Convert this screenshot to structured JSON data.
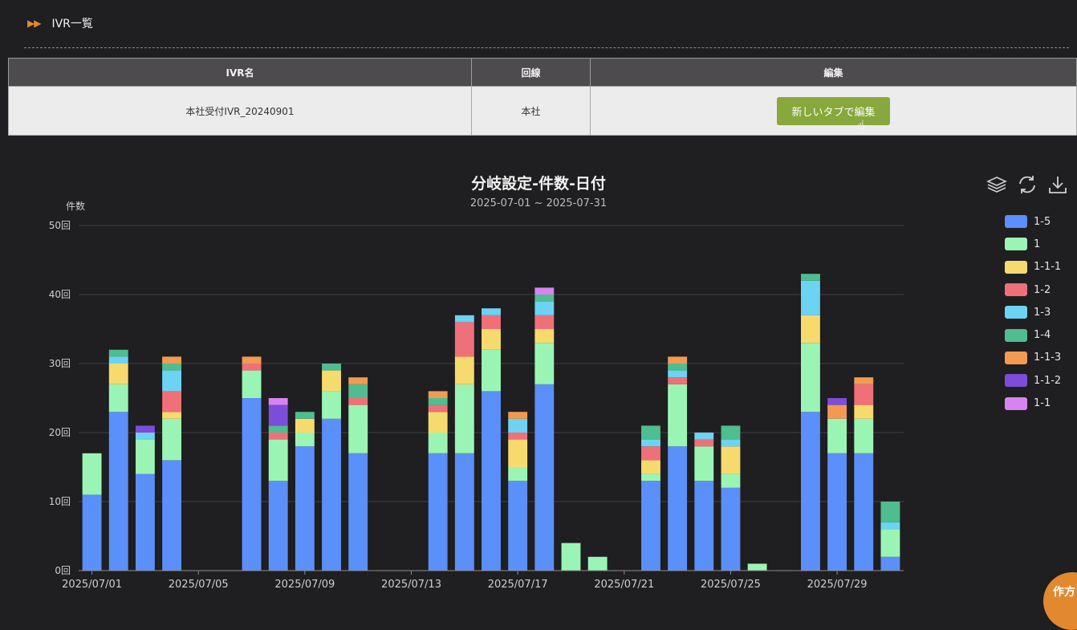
{
  "header": {
    "arrows": "▶▶",
    "title": "IVR一覧"
  },
  "table": {
    "headers": {
      "name": "IVR名",
      "line": "回線",
      "edit": "編集"
    },
    "row": {
      "name": "本社受付IVR_20240901",
      "line": "本社",
      "edit_button": "新しいタブで編集"
    }
  },
  "corner_badge": "作方",
  "icons": {
    "cursor": "hand-pointer-icon",
    "stack": "layers-icon",
    "refresh": "refresh-icon",
    "download": "download-icon"
  },
  "chart_data": {
    "type": "bar",
    "stacked": true,
    "title": "分岐設定-件数-日付",
    "subtitle": "2025-07-01 ~ 2025-07-31",
    "ylabel": "件数",
    "ylim": [
      0,
      50
    ],
    "yticks": [
      "0回",
      "10回",
      "20回",
      "30回",
      "40回",
      "50回"
    ],
    "xtick_labels": [
      "2025/07/01",
      "2025/07/05",
      "2025/07/09",
      "2025/07/13",
      "2025/07/17",
      "2025/07/21",
      "2025/07/25",
      "2025/07/29"
    ],
    "legend_position": "right",
    "categories": [
      "2025/07/01",
      "2025/07/02",
      "2025/07/03",
      "2025/07/04",
      "2025/07/05",
      "2025/07/06",
      "2025/07/07",
      "2025/07/08",
      "2025/07/09",
      "2025/07/10",
      "2025/07/11",
      "2025/07/12",
      "2025/07/13",
      "2025/07/14",
      "2025/07/15",
      "2025/07/16",
      "2025/07/17",
      "2025/07/18",
      "2025/07/19",
      "2025/07/20",
      "2025/07/21",
      "2025/07/22",
      "2025/07/23",
      "2025/07/24",
      "2025/07/25",
      "2025/07/26",
      "2025/07/27",
      "2025/07/28",
      "2025/07/29",
      "2025/07/30",
      "2025/07/31"
    ],
    "series": [
      {
        "name": "1-5",
        "color": "#5b8ff9",
        "values": [
          11,
          23,
          14,
          16,
          0,
          0,
          25,
          13,
          18,
          22,
          17,
          0,
          0,
          17,
          17,
          26,
          13,
          27,
          0,
          0,
          0,
          13,
          18,
          13,
          12,
          0,
          0,
          23,
          17,
          17,
          2
        ]
      },
      {
        "name": "1",
        "color": "#9af5b4",
        "values": [
          6,
          4,
          5,
          6,
          0,
          0,
          4,
          6,
          2,
          4,
          7,
          0,
          0,
          3,
          10,
          6,
          2,
          6,
          4,
          2,
          0,
          1,
          9,
          5,
          2,
          1,
          0,
          10,
          5,
          5,
          4
        ]
      },
      {
        "name": "1-1-1",
        "color": "#f7da6e",
        "values": [
          0,
          3,
          0,
          1,
          0,
          0,
          0,
          0,
          2,
          3,
          0,
          0,
          0,
          3,
          4,
          3,
          4,
          2,
          0,
          0,
          0,
          2,
          0,
          0,
          4,
          0,
          0,
          4,
          0,
          2,
          0
        ]
      },
      {
        "name": "1-2",
        "color": "#ef7079",
        "values": [
          0,
          0,
          0,
          3,
          0,
          0,
          1,
          1,
          0,
          0,
          1,
          0,
          0,
          1,
          5,
          2,
          1,
          2,
          0,
          0,
          0,
          2,
          1,
          1,
          0,
          0,
          0,
          0,
          0,
          3,
          0
        ]
      },
      {
        "name": "1-3",
        "color": "#6dd3f2",
        "values": [
          0,
          1,
          1,
          3,
          0,
          0,
          0,
          0,
          0,
          0,
          0,
          0,
          0,
          0,
          1,
          1,
          2,
          2,
          0,
          0,
          0,
          1,
          1,
          1,
          1,
          0,
          0,
          5,
          0,
          0,
          1
        ]
      },
      {
        "name": "1-4",
        "color": "#4fbd8f",
        "values": [
          0,
          1,
          0,
          1,
          0,
          0,
          0,
          1,
          1,
          1,
          2,
          0,
          0,
          1,
          0,
          0,
          0,
          1,
          0,
          0,
          0,
          2,
          1,
          0,
          2,
          0,
          0,
          1,
          0,
          0,
          3
        ]
      },
      {
        "name": "1-1-3",
        "color": "#f39a52",
        "values": [
          0,
          0,
          0,
          1,
          0,
          0,
          1,
          0,
          0,
          0,
          1,
          0,
          0,
          1,
          0,
          0,
          1,
          0,
          0,
          0,
          0,
          0,
          1,
          0,
          0,
          0,
          0,
          0,
          2,
          1,
          0
        ]
      },
      {
        "name": "1-1-2",
        "color": "#7c4ddb",
        "values": [
          0,
          0,
          1,
          0,
          0,
          0,
          0,
          3,
          0,
          0,
          0,
          0,
          0,
          0,
          0,
          0,
          0,
          0,
          0,
          0,
          0,
          0,
          0,
          0,
          0,
          0,
          0,
          0,
          1,
          0,
          0
        ]
      },
      {
        "name": "1-1",
        "color": "#d783f2",
        "values": [
          0,
          0,
          0,
          0,
          0,
          0,
          0,
          1,
          0,
          0,
          0,
          0,
          0,
          0,
          0,
          0,
          0,
          1,
          0,
          0,
          0,
          0,
          0,
          0,
          0,
          0,
          0,
          0,
          0,
          0,
          0
        ]
      }
    ]
  }
}
